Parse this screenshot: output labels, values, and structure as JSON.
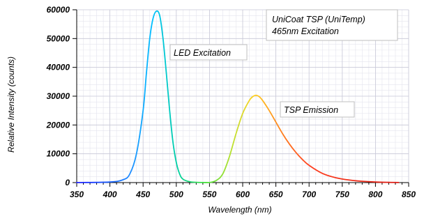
{
  "chart_data": {
    "type": "line",
    "xlabel": "Wavelength (nm)",
    "ylabel": "Relative Intensity (counts)",
    "xlim": [
      350,
      850
    ],
    "ylim": [
      0,
      60000
    ],
    "x_ticks": [
      350,
      400,
      450,
      500,
      550,
      600,
      650,
      700,
      750,
      800,
      850
    ],
    "y_ticks": [
      0,
      10000,
      20000,
      30000,
      40000,
      50000,
      60000
    ],
    "grid": true,
    "info_box": [
      "UniCoat TSP (UniTemp)",
      "465nm Excitation"
    ],
    "series": [
      {
        "name": "LED Excitation",
        "x": [
          350,
          400,
          420,
          430,
          440,
          450,
          455,
          460,
          465,
          470,
          475,
          480,
          485,
          490,
          495,
          500,
          505,
          510,
          520,
          530,
          550
        ],
        "y": [
          0,
          200,
          1000,
          3000,
          10000,
          25000,
          38000,
          50000,
          57000,
          59500,
          58000,
          50000,
          38000,
          25000,
          14000,
          7000,
          3000,
          1200,
          300,
          100,
          0
        ]
      },
      {
        "name": "TSP Emission",
        "x": [
          550,
          560,
          570,
          580,
          590,
          600,
          610,
          615,
          620,
          625,
          630,
          640,
          650,
          660,
          670,
          680,
          690,
          700,
          720,
          740,
          760,
          780,
          800,
          820,
          835
        ],
        "y": [
          0,
          700,
          3000,
          9000,
          17000,
          24000,
          28500,
          29800,
          30300,
          29800,
          28500,
          25000,
          21000,
          17000,
          13500,
          10500,
          8000,
          6000,
          3200,
          1700,
          900,
          450,
          200,
          80,
          30
        ]
      }
    ]
  }
}
